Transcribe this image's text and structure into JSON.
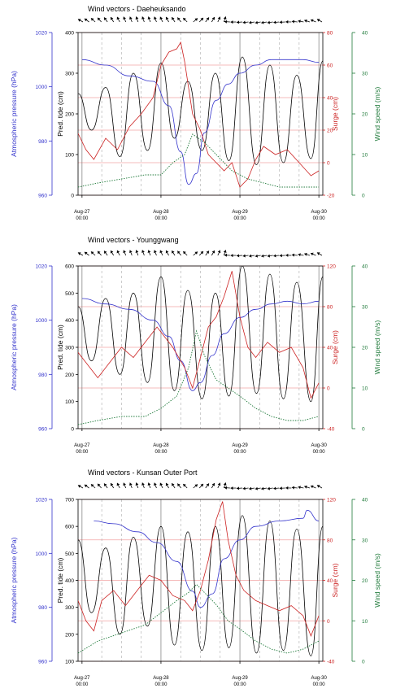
{
  "axes_titles": {
    "pressure": "Atmospheric pressure (hPa)",
    "tide": "Pred. tide (cm)",
    "surge": "Surge (cm)",
    "wind": "Wind speed (m/s)"
  },
  "colors": {
    "pressure": "#3333cc",
    "tide": "#000000",
    "surge": "#cc2222",
    "wind": "#1f7a3a"
  },
  "chart_data": [
    {
      "type": "line",
      "title": "Wind vectors - Daeheuksando",
      "x_ticks": [
        {
          "day": 27,
          "date": "Aug-27",
          "time": "00:00"
        },
        {
          "day": 28,
          "date": "Aug-28",
          "time": "00:00"
        },
        {
          "day": 29,
          "date": "Aug-29",
          "time": "00:00"
        },
        {
          "day": 30,
          "date": "Aug-30",
          "time": "00:00"
        }
      ],
      "pressure": {
        "ylim": [
          960,
          1020
        ],
        "ticks": [
          960,
          980,
          1000,
          1020
        ],
        "x": [
          27,
          27.3,
          27.6,
          27.9,
          28.1,
          28.25,
          28.35,
          28.45,
          28.55,
          28.7,
          28.85,
          29,
          29.2,
          29.4,
          29.6,
          29.8,
          30
        ],
        "y": [
          1010,
          1008,
          1004,
          1002,
          993,
          976,
          964,
          968,
          983,
          995,
          1001,
          1005,
          1008,
          1010,
          1010,
          1010,
          1009
        ]
      },
      "tide": {
        "ylim": [
          0,
          400
        ],
        "ticks": [
          0,
          100,
          200,
          300,
          400
        ],
        "x": [
          26.95,
          27.12,
          27.3,
          27.48,
          27.65,
          27.83,
          28,
          28.17,
          28.34,
          28.52,
          28.69,
          28.86,
          29.03,
          29.21,
          29.38,
          29.55,
          29.72,
          29.9,
          30.05
        ],
        "y": [
          250,
          160,
          265,
          95,
          300,
          110,
          325,
          140,
          280,
          110,
          300,
          85,
          340,
          75,
          320,
          80,
          295,
          90,
          330
        ]
      },
      "surge": {
        "ylim": [
          -20,
          80
        ],
        "ticks": [
          -20,
          0,
          20,
          40,
          60,
          80
        ],
        "x": [
          26.95,
          27.05,
          27.15,
          27.3,
          27.45,
          27.6,
          27.75,
          27.9,
          28,
          28.1,
          28.2,
          28.25,
          28.3,
          28.4,
          28.5,
          28.6,
          28.7,
          28.8,
          28.9,
          29,
          29.1,
          29.2,
          29.3,
          29.45,
          29.6,
          29.75,
          29.9,
          30
        ],
        "y": [
          18,
          8,
          2,
          15,
          8,
          22,
          30,
          40,
          60,
          68,
          70,
          74,
          62,
          30,
          20,
          5,
          0,
          -5,
          0,
          -15,
          -10,
          2,
          10,
          5,
          8,
          0,
          -8,
          -5
        ]
      },
      "wind": {
        "ylim": [
          0,
          40
        ],
        "ticks": [
          0,
          10,
          20,
          30,
          40
        ],
        "x": [
          26.95,
          27.2,
          27.5,
          27.8,
          28,
          28.15,
          28.3,
          28.4,
          28.55,
          28.7,
          28.9,
          29.1,
          29.3,
          29.5,
          29.7,
          29.9,
          30
        ],
        "y": [
          2,
          3,
          4,
          5,
          5,
          8,
          10,
          15,
          13,
          10,
          6,
          4,
          3,
          2,
          2,
          2,
          2
        ]
      }
    },
    {
      "type": "line",
      "title": "Wind vectors - Younggwang",
      "x_ticks": [
        {
          "day": 27,
          "date": "Aug-27",
          "time": "00:00"
        },
        {
          "day": 28,
          "date": "Aug-28",
          "time": "00:00"
        },
        {
          "day": 29,
          "date": "Aug-29",
          "time": "00:00"
        },
        {
          "day": 30,
          "date": "Aug-30",
          "time": "00:00"
        }
      ],
      "pressure": {
        "ylim": [
          960,
          1020
        ],
        "ticks": [
          960,
          980,
          1000,
          1020
        ],
        "x": [
          27,
          27.3,
          27.6,
          27.9,
          28.1,
          28.25,
          28.4,
          28.5,
          28.65,
          28.8,
          29,
          29.2,
          29.4,
          29.6,
          29.8,
          30
        ],
        "y": [
          1008,
          1006,
          1004,
          1000,
          994,
          985,
          974,
          977,
          987,
          995,
          1001,
          1004,
          1006,
          1007,
          1006,
          1007
        ]
      },
      "tide": {
        "ylim": [
          0,
          600
        ],
        "ticks": [
          0,
          100,
          200,
          300,
          400,
          500,
          600
        ],
        "x": [
          26.95,
          27.12,
          27.3,
          27.48,
          27.65,
          27.83,
          28,
          28.17,
          28.34,
          28.52,
          28.69,
          28.86,
          29.03,
          29.21,
          29.38,
          29.55,
          29.72,
          29.9,
          30.05
        ],
        "y": [
          450,
          250,
          480,
          200,
          500,
          170,
          560,
          140,
          510,
          110,
          500,
          120,
          600,
          130,
          570,
          110,
          540,
          100,
          560
        ]
      },
      "surge": {
        "ylim": [
          -40,
          120
        ],
        "ticks": [
          -40,
          0,
          40,
          80,
          120
        ],
        "x": [
          26.95,
          27.05,
          27.2,
          27.35,
          27.5,
          27.65,
          27.8,
          27.95,
          28.05,
          28.15,
          28.3,
          28.4,
          28.5,
          28.6,
          28.7,
          28.8,
          28.9,
          29,
          29.1,
          29.2,
          29.35,
          29.5,
          29.65,
          29.8,
          29.9,
          30
        ],
        "y": [
          35,
          25,
          10,
          25,
          40,
          30,
          45,
          60,
          50,
          40,
          20,
          0,
          30,
          60,
          70,
          90,
          115,
          70,
          40,
          30,
          45,
          35,
          40,
          20,
          -10,
          5
        ]
      },
      "wind": {
        "ylim": [
          0,
          40
        ],
        "ticks": [
          0,
          10,
          20,
          30,
          40
        ],
        "x": [
          26.95,
          27.2,
          27.5,
          27.8,
          28,
          28.2,
          28.35,
          28.45,
          28.55,
          28.7,
          28.85,
          29,
          29.2,
          29.4,
          29.6,
          29.8,
          30
        ],
        "y": [
          1,
          2,
          3,
          3,
          5,
          8,
          15,
          24,
          18,
          12,
          10,
          8,
          5,
          3,
          2,
          2,
          3
        ]
      }
    },
    {
      "type": "line",
      "title": "Wind vectors - Kunsan Outer Port",
      "x_ticks": [
        {
          "day": 27,
          "date": "Aug-27",
          "time": "00:00"
        },
        {
          "day": 28,
          "date": "Aug-28",
          "time": "00:00"
        },
        {
          "day": 29,
          "date": "Aug-29",
          "time": "00:00"
        },
        {
          "day": 30,
          "date": "Aug-30",
          "time": "00:00"
        }
      ],
      "pressure": {
        "ylim": [
          960,
          1020
        ],
        "ticks": [
          960,
          980,
          1000,
          1020
        ],
        "x": [
          27.15,
          27.4,
          27.7,
          27.95,
          28.2,
          28.4,
          28.5,
          28.65,
          28.8,
          29,
          29.2,
          29.5,
          29.8,
          29.85,
          30
        ],
        "y": [
          1012,
          1011,
          1008,
          1004,
          997,
          986,
          980,
          985,
          998,
          1005,
          1010,
          1012,
          1013,
          1016,
          1012
        ]
      },
      "tide": {
        "ylim": [
          100,
          700
        ],
        "ticks": [
          100,
          200,
          300,
          400,
          500,
          600,
          700
        ],
        "x": [
          26.95,
          27.12,
          27.3,
          27.48,
          27.65,
          27.83,
          28,
          28.17,
          28.34,
          28.52,
          28.69,
          28.86,
          29.03,
          29.21,
          29.38,
          29.55,
          29.72,
          29.9,
          30.05
        ],
        "y": [
          550,
          280,
          520,
          200,
          560,
          230,
          600,
          160,
          580,
          140,
          600,
          150,
          640,
          130,
          620,
          140,
          590,
          120,
          600
        ]
      },
      "surge": {
        "ylim": [
          -40,
          120
        ],
        "ticks": [
          -40,
          0,
          40,
          80,
          120
        ],
        "x": [
          26.95,
          27.05,
          27.15,
          27.25,
          27.4,
          27.55,
          27.7,
          27.85,
          28,
          28.15,
          28.3,
          28.4,
          28.5,
          28.6,
          28.7,
          28.78,
          28.85,
          28.95,
          29.05,
          29.2,
          29.35,
          29.5,
          29.65,
          29.8,
          29.9,
          30
        ],
        "y": [
          20,
          0,
          -10,
          20,
          30,
          15,
          30,
          45,
          40,
          25,
          20,
          10,
          30,
          60,
          100,
          118,
          80,
          45,
          30,
          20,
          15,
          10,
          15,
          5,
          -15,
          5
        ]
      },
      "wind": {
        "ylim": [
          0,
          40
        ],
        "ticks": [
          0,
          10,
          20,
          30,
          40
        ],
        "x": [
          26.95,
          27.2,
          27.5,
          27.8,
          28,
          28.2,
          28.35,
          28.45,
          28.55,
          28.7,
          28.85,
          29,
          29.2,
          29.4,
          29.6,
          29.8,
          30
        ],
        "y": [
          2,
          5,
          7,
          9,
          12,
          15,
          17,
          19,
          17,
          14,
          10,
          8,
          5,
          3,
          2,
          3,
          5
        ]
      }
    }
  ]
}
